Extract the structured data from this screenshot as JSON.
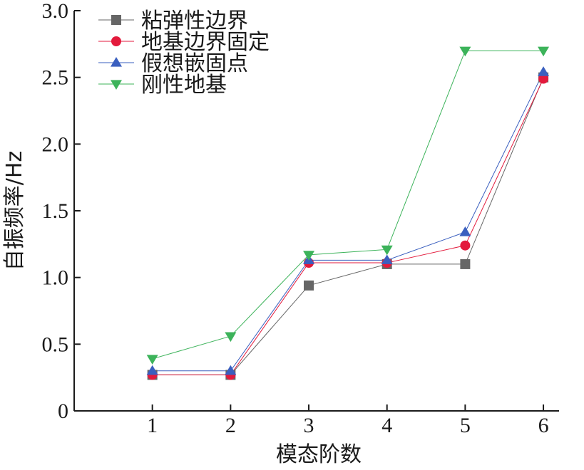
{
  "chart_data": {
    "type": "line",
    "title": "",
    "xlabel": "模态阶数",
    "ylabel": "自振频率/Hz",
    "x": [
      1,
      2,
      3,
      4,
      5,
      6
    ],
    "xticks": [
      "1",
      "2",
      "3",
      "4",
      "5",
      "6"
    ],
    "xlim": [
      0,
      6.2
    ],
    "ylim": [
      0,
      3.0
    ],
    "yticks": [
      "0",
      "0.5",
      "1.0",
      "1.5",
      "2.0",
      "2.5",
      "3.0"
    ],
    "grid": false,
    "legend_position": "top-left",
    "series": [
      {
        "name": "粘弹性边界",
        "color": "#666666",
        "marker": "square",
        "values": [
          0.27,
          0.27,
          0.94,
          1.1,
          1.1,
          2.5
        ]
      },
      {
        "name": "地基边界固定",
        "color": "#e31a3c",
        "marker": "circle",
        "values": [
          0.27,
          0.27,
          1.11,
          1.11,
          1.24,
          2.49
        ]
      },
      {
        "name": "假想嵌固点",
        "color": "#3a5fbf",
        "marker": "triangle-up",
        "values": [
          0.3,
          0.3,
          1.13,
          1.13,
          1.34,
          2.54
        ]
      },
      {
        "name": "刚性地基",
        "color": "#3cb35a",
        "marker": "triangle-down",
        "values": [
          0.39,
          0.56,
          1.17,
          1.21,
          2.7,
          2.7
        ]
      }
    ]
  }
}
